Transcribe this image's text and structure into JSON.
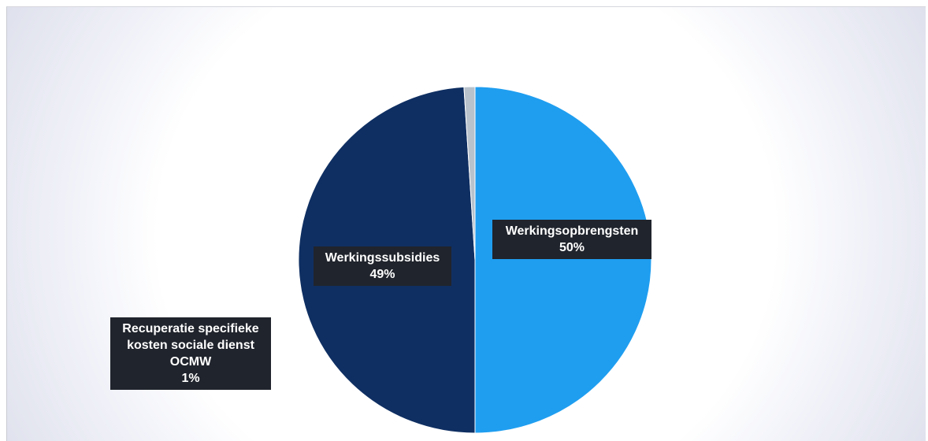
{
  "chart_data": {
    "type": "pie",
    "title": "",
    "categories": [
      "Werkingsopbrengsten",
      "Werkingssubsidies",
      "Recuperatie specifieke kosten sociale dienst OCMW"
    ],
    "values": [
      50,
      49,
      1
    ],
    "unit": "%",
    "colors": [
      "#1f9ef0",
      "#0f2f62",
      "#b8c2cc"
    ],
    "legend": "none",
    "data_labels": [
      {
        "lines": [
          "Werkingsopbrengsten",
          "50%"
        ]
      },
      {
        "lines": [
          "Werkingssubsidies",
          "49%"
        ]
      },
      {
        "lines": [
          "Recuperatie specifieke",
          "kosten sociale dienst",
          "OCMW",
          "1%"
        ]
      }
    ]
  }
}
